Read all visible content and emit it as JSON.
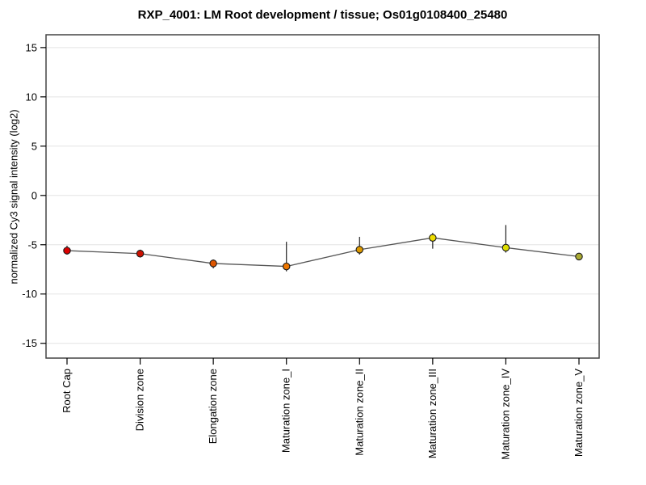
{
  "page": {
    "background": "#ffffff"
  },
  "chart_data": {
    "type": "line",
    "title": "RXP_4001: LM Root development / tissue; Os01g0108400_25480",
    "ylabel": "normalized Cy3 signal intensity (log2)",
    "xlabel": "",
    "categories": [
      "Root Cap",
      "Division zone",
      "Elongation zone",
      "Maturation zone_I",
      "Maturation zone_II",
      "Maturation zone_III",
      "Maturation zone_IV",
      "Maturation zone_V"
    ],
    "values": [
      -5.6,
      -5.9,
      -6.9,
      -7.2,
      -5.5,
      -4.3,
      -5.3,
      -6.2
    ],
    "error_low": [
      -6.0,
      -6.3,
      -7.4,
      -7.7,
      -6.0,
      -5.4,
      -5.8,
      -6.4
    ],
    "error_high": [
      -5.1,
      -5.5,
      -6.5,
      -4.7,
      -4.2,
      -3.8,
      -3.0,
      -6.0
    ],
    "point_colors": [
      "#dd0000",
      "#cc1100",
      "#dd5500",
      "#ee7700",
      "#dd9900",
      "#eedd00",
      "#dddd00",
      "#aaaa33"
    ],
    "yticks": [
      15,
      10,
      5,
      0,
      -5,
      -10,
      -15
    ],
    "ylim": [
      -16.5,
      16.3
    ],
    "grid": true,
    "legend": "none",
    "line_color": "#555555",
    "error_bar_color": "#222222",
    "grid_color": "#e4e4e4",
    "frame_color": "#444444",
    "tick_color": "#000000"
  }
}
